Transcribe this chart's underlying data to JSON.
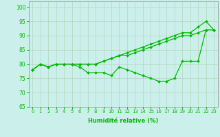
{
  "xlabel": "Humidité relative (%)",
  "x": [
    0,
    1,
    2,
    3,
    4,
    5,
    6,
    7,
    8,
    9,
    10,
    11,
    12,
    13,
    14,
    15,
    16,
    17,
    18,
    19,
    20,
    21,
    22,
    23
  ],
  "line1": [
    78,
    80,
    79,
    80,
    80,
    80,
    80,
    80,
    80,
    81,
    82,
    83,
    83,
    84,
    85,
    86,
    87,
    88,
    89,
    90,
    90,
    91,
    92,
    92
  ],
  "line2": [
    78,
    80,
    79,
    80,
    80,
    80,
    80,
    80,
    80,
    81,
    82,
    83,
    84,
    85,
    86,
    87,
    88,
    89,
    90,
    91,
    91,
    93,
    95,
    92
  ],
  "line3": [
    78,
    80,
    79,
    80,
    80,
    80,
    79,
    77,
    77,
    77,
    76,
    79,
    78,
    77,
    76,
    75,
    74,
    74,
    75,
    81,
    81,
    81,
    92,
    92
  ],
  "ylim": [
    65,
    102
  ],
  "yticks": [
    65,
    70,
    75,
    80,
    85,
    90,
    95,
    100
  ],
  "xlim": [
    -0.5,
    23.5
  ],
  "line_color": "#00bb00",
  "marker": "D",
  "marker_size": 2.0,
  "bg_color": "#cbf0eb",
  "grid_color": "#aaccaa",
  "tick_fontsize": 5.0,
  "xlabel_fontsize": 6.0,
  "linewidth": 0.9
}
